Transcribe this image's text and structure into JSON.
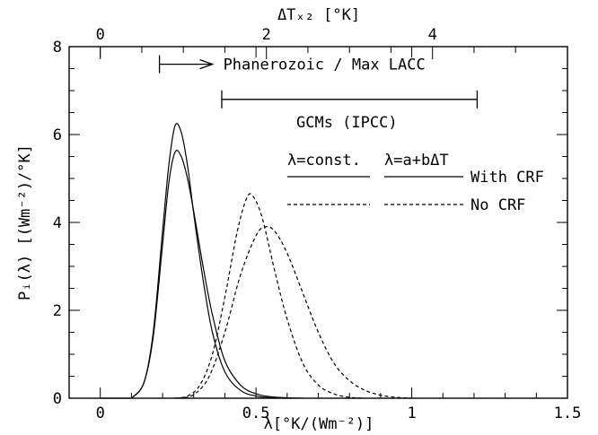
{
  "chart_data": {
    "type": "line",
    "title": "",
    "xlabel": "λ[°K/(Wm⁻²)]",
    "ylabel": "Pᵢ(λ) [(Wm⁻²)/°K]",
    "top_xlabel": "ΔTₓ₂ [°K]",
    "xlim": [
      -0.1,
      1.5
    ],
    "ylim": [
      0,
      8
    ],
    "x_ticks": [
      0,
      0.5,
      1,
      1.5
    ],
    "x_tick_labels": [
      "0",
      "0.5",
      "1",
      "1.5"
    ],
    "y_ticks": [
      0,
      2,
      4,
      6,
      8
    ],
    "y_tick_labels": [
      "0",
      "2",
      "4",
      "6",
      "8"
    ],
    "top_ticks": [
      0,
      2,
      4
    ],
    "top_tick_labels": [
      "0",
      "2",
      "4"
    ],
    "grid": false,
    "annotations": {
      "phanerozoic": {
        "text": "Phanerozoic / Max LACC",
        "x_start": 0.19,
        "x_end": 0.36,
        "y": 7.6
      },
      "gcms": {
        "text": "GCMs (IPCC)",
        "x_start": 0.39,
        "x_end": 1.21,
        "y": 6.8
      }
    },
    "legend": {
      "col1": "λ=const.",
      "col2": "λ=a+bΔT",
      "with_crf": "With CRF",
      "no_crf": "No CRF"
    },
    "series": [
      {
        "style": "solid",
        "x": [
          0.1,
          0.14,
          0.17,
          0.2,
          0.22,
          0.24,
          0.26,
          0.28,
          0.3,
          0.33,
          0.36,
          0.4,
          0.45,
          0.5,
          0.55,
          0.6
        ],
        "y": [
          0,
          0.35,
          1.5,
          3.8,
          5.3,
          6.2,
          6.05,
          5.3,
          4.2,
          2.7,
          1.5,
          0.6,
          0.18,
          0.05,
          0.01,
          0
        ]
      },
      {
        "style": "solid",
        "x": [
          0.1,
          0.14,
          0.17,
          0.2,
          0.22,
          0.24,
          0.26,
          0.28,
          0.3,
          0.33,
          0.36,
          0.4,
          0.45,
          0.5,
          0.55,
          0.6,
          0.65
        ],
        "y": [
          0,
          0.35,
          1.4,
          3.5,
          4.9,
          5.6,
          5.5,
          5.0,
          4.25,
          3.0,
          1.9,
          0.85,
          0.3,
          0.1,
          0.03,
          0.01,
          0
        ]
      },
      {
        "style": "dashed",
        "x": [
          0.24,
          0.28,
          0.32,
          0.36,
          0.4,
          0.44,
          0.47,
          0.49,
          0.52,
          0.56,
          0.6,
          0.65,
          0.7,
          0.75,
          0.8,
          0.85
        ],
        "y": [
          0,
          0.05,
          0.3,
          1.0,
          2.3,
          3.8,
          4.55,
          4.6,
          4.1,
          2.9,
          1.8,
          0.8,
          0.3,
          0.1,
          0.02,
          0
        ]
      },
      {
        "style": "dashed",
        "x": [
          0.25,
          0.3,
          0.35,
          0.4,
          0.45,
          0.5,
          0.53,
          0.56,
          0.6,
          0.65,
          0.7,
          0.75,
          0.8,
          0.85,
          0.9,
          0.95,
          1.0
        ],
        "y": [
          0,
          0.08,
          0.5,
          1.5,
          2.8,
          3.7,
          3.9,
          3.8,
          3.3,
          2.4,
          1.5,
          0.8,
          0.4,
          0.18,
          0.07,
          0.02,
          0
        ]
      }
    ]
  }
}
